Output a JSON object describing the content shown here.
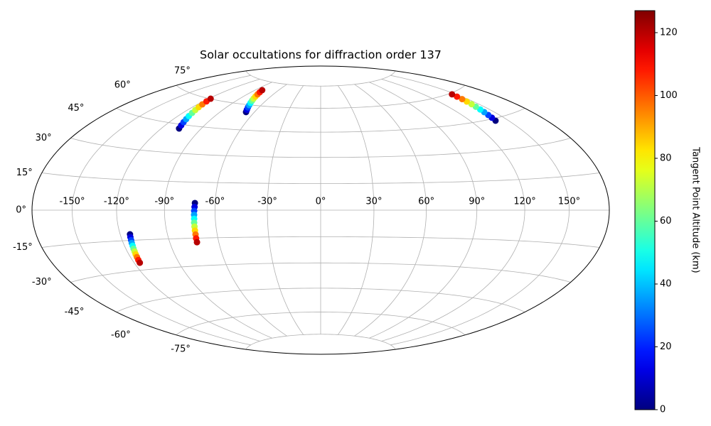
{
  "chart_data": {
    "type": "scatter",
    "projection": "hammer",
    "title": "Solar occultations for diffraction order 137",
    "x": [
      -106.6,
      -107.7,
      -108.9,
      -110.0,
      -111.2,
      -112.3,
      -113.4,
      -114.6,
      -115.7,
      -116.9,
      -118.0,
      -67.4,
      -68.8,
      -70.2,
      -71.5,
      -72.9,
      -74.3,
      -75.7,
      -77.1,
      -78.4,
      -79.8,
      -81.2,
      139.8,
      140.5,
      141.1,
      141.8,
      142.4,
      143.1,
      143.8,
      144.4,
      145.1,
      145.7,
      146.4,
      -71.9,
      -72.0,
      -72.2,
      -72.3,
      -72.4,
      -72.6,
      -72.7,
      -72.8,
      -72.9,
      -73.1,
      -73.2,
      -113.6,
      -113.9,
      -114.1,
      -114.4,
      -114.6,
      -114.9,
      -115.1,
      -115.4,
      -115.6,
      -115.9,
      -116.1
    ],
    "y": [
      42.8,
      44.5,
      46.3,
      48.0,
      49.7,
      51.5,
      53.2,
      54.9,
      56.6,
      58.4,
      60.1,
      55.6,
      57.0,
      58.4,
      59.8,
      61.2,
      62.6,
      63.9,
      65.3,
      66.7,
      68.1,
      69.5,
      43.9,
      45.5,
      47.0,
      48.6,
      50.1,
      51.7,
      53.2,
      54.8,
      56.3,
      57.9,
      59.4,
      3.8,
      1.7,
      -0.4,
      -2.5,
      -4.6,
      -6.7,
      -8.8,
      -10.9,
      -13.0,
      -15.1,
      -17.2,
      -12.0,
      -13.4,
      -14.9,
      -16.3,
      -17.7,
      -19.2,
      -20.6,
      -22.0,
      -23.4,
      -24.9,
      -26.3
    ],
    "c": [
      0,
      12,
      24,
      36,
      48,
      60,
      72,
      84,
      96,
      108,
      120,
      0,
      12,
      24,
      36,
      48,
      60,
      72,
      84,
      96,
      108,
      120,
      0,
      12,
      24,
      36,
      48,
      60,
      72,
      84,
      96,
      108,
      120,
      0,
      12,
      24,
      36,
      48,
      60,
      72,
      84,
      96,
      108,
      120,
      0,
      12,
      24,
      36,
      48,
      60,
      72,
      84,
      96,
      108,
      120
    ],
    "xlim": [
      -180,
      180
    ],
    "xticks": [
      {
        "value": -150,
        "label": "-150°"
      },
      {
        "value": -120,
        "label": "-120°"
      },
      {
        "value": -90,
        "label": "-90°"
      },
      {
        "value": -60,
        "label": "-60°"
      },
      {
        "value": -30,
        "label": "-30°"
      },
      {
        "value": 0,
        "label": "0°"
      },
      {
        "value": 30,
        "label": "30°"
      },
      {
        "value": 60,
        "label": "60°"
      },
      {
        "value": 90,
        "label": "90°"
      },
      {
        "value": 120,
        "label": "120°"
      },
      {
        "value": 150,
        "label": "150°"
      }
    ],
    "yticks": [
      {
        "value": -75,
        "label": "-75°"
      },
      {
        "value": -60,
        "label": "-60°"
      },
      {
        "value": -45,
        "label": "-45°"
      },
      {
        "value": -30,
        "label": "-30°"
      },
      {
        "value": -15,
        "label": "-15°"
      },
      {
        "value": 0,
        "label": "0°"
      },
      {
        "value": 15,
        "label": "15°"
      },
      {
        "value": 30,
        "label": "30°"
      },
      {
        "value": 45,
        "label": "45°"
      },
      {
        "value": 60,
        "label": "60°"
      },
      {
        "value": 75,
        "label": "75°"
      }
    ],
    "grid": true,
    "colormap": "jet",
    "colorbar": {
      "label": "Tangent Point Altitude (km)",
      "lim": [
        0,
        127
      ],
      "ticks": [
        0,
        20,
        40,
        60,
        80,
        100,
        120
      ]
    }
  }
}
